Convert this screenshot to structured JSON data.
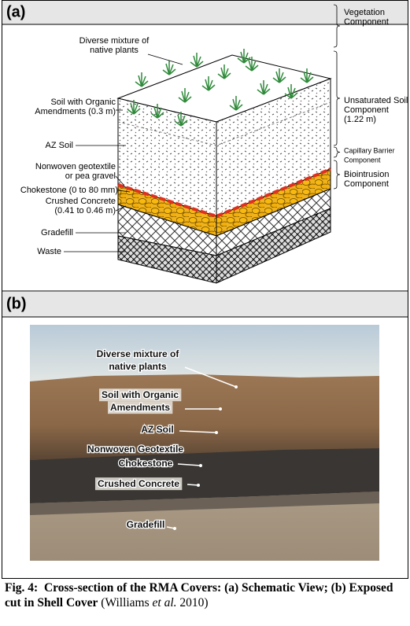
{
  "panel_a": {
    "label": "(a)",
    "labels": [
      {
        "lines": [
          "Diverse mixture of",
          "native plants"
        ]
      },
      {
        "lines": [
          "Soil with Organic",
          "Amendments (0.3 m)"
        ]
      },
      {
        "lines": [
          "AZ Soil"
        ]
      },
      {
        "lines": [
          "Nonwoven geotextile",
          "or pea gravel"
        ]
      },
      {
        "lines": [
          "Chokestone (0 to 80 mm)"
        ]
      },
      {
        "lines": [
          "Crushed Concrete",
          "(0.41 to 0.46 m)"
        ]
      },
      {
        "lines": [
          "Gradefill"
        ]
      },
      {
        "lines": [
          "Waste"
        ]
      }
    ],
    "components": [
      {
        "lines": [
          "Vegetation",
          "Component"
        ]
      },
      {
        "lines": [
          "Unsaturated Soil",
          "Component",
          "(1.22 m)"
        ]
      },
      {
        "lines": [
          "Capillary Barrier",
          "Component"
        ]
      },
      {
        "lines": [
          "Biointrusion",
          "Component"
        ]
      }
    ]
  },
  "panel_b": {
    "label": "(b)",
    "labels": [
      {
        "lines": [
          "Diverse mixture of",
          "native plants"
        ]
      },
      {
        "lines": [
          "Soil with Organic",
          "Amendments"
        ]
      },
      {
        "lines": [
          "AZ Soil"
        ]
      },
      {
        "lines": [
          "Nonwoven Geotextile"
        ]
      },
      {
        "lines": [
          "Chokestone"
        ]
      },
      {
        "lines": [
          "Crushed Concrete"
        ]
      },
      {
        "lines": [
          "Gradefill"
        ]
      }
    ]
  },
  "caption": {
    "fig": "Fig. 4:",
    "title": "Cross-section of the RMA Covers: (a) Schematic View; (b) Exposed cut in Shell Cover",
    "cite_open": "(Williams",
    "cite_etal": "et al.",
    "cite_close": "2010)"
  }
}
